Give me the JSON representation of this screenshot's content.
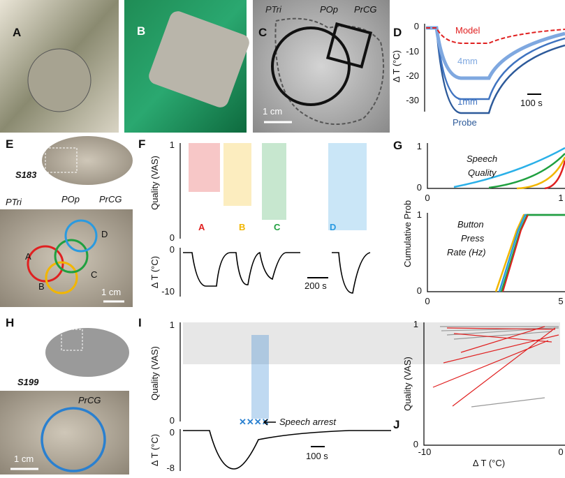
{
  "panels": {
    "a": {
      "label": "A"
    },
    "b": {
      "label": "B"
    },
    "c": {
      "label": "C",
      "regions": [
        "PTri",
        "POp",
        "PrCG"
      ],
      "scale": "1 cm"
    },
    "d": {
      "label": "D",
      "y_label": "Δ T (°C)",
      "y_ticks": [
        "0",
        "-10",
        "-20",
        "-30"
      ],
      "curves": [
        "Model",
        "4mm",
        "1mm",
        "Probe"
      ],
      "scale": "100 s"
    },
    "e": {
      "label": "E",
      "subject": "S183",
      "regions": [
        "PTri",
        "POp",
        "PrCG"
      ],
      "sites": [
        "A",
        "B",
        "C",
        "D"
      ],
      "scale": "1 cm"
    },
    "f": {
      "label": "F",
      "y_label": "Quality (VAS)",
      "y_ticks": [
        "1",
        "0"
      ],
      "sites": [
        "A",
        "B",
        "C",
        "D"
      ],
      "temp_label": "Δ T (°C)",
      "temp_ticks": [
        "0",
        "-10"
      ],
      "scale": "200 s"
    },
    "g": {
      "label": "G",
      "y_label": "Cumulative Prob",
      "top": {
        "title": [
          "Speech",
          "Quality"
        ],
        "y_ticks": [
          "1",
          "0"
        ],
        "x_ticks": [
          "0",
          "1"
        ]
      },
      "bottom": {
        "title": [
          "Button",
          "Press",
          "Rate (Hz)"
        ],
        "y_ticks": [
          "1",
          "0"
        ],
        "x_ticks": [
          "0",
          "5"
        ]
      }
    },
    "h": {
      "label": "H",
      "subject": "S199",
      "region": "PrCG",
      "scale": "1 cm"
    },
    "i": {
      "label": "I",
      "y_label": "Quality (VAS)",
      "y_ticks": [
        "1",
        "0"
      ],
      "annotation": "Speech arrest",
      "temp_label": "Δ T (°C)",
      "temp_ticks": [
        "0",
        "-8"
      ],
      "scale": "100 s"
    },
    "j": {
      "label": "J",
      "y_label": "Quality (VAS)",
      "y_ticks": [
        "1",
        "0"
      ],
      "x_label": "Δ T (°C)",
      "x_ticks": [
        "-10",
        "0"
      ]
    }
  }
}
